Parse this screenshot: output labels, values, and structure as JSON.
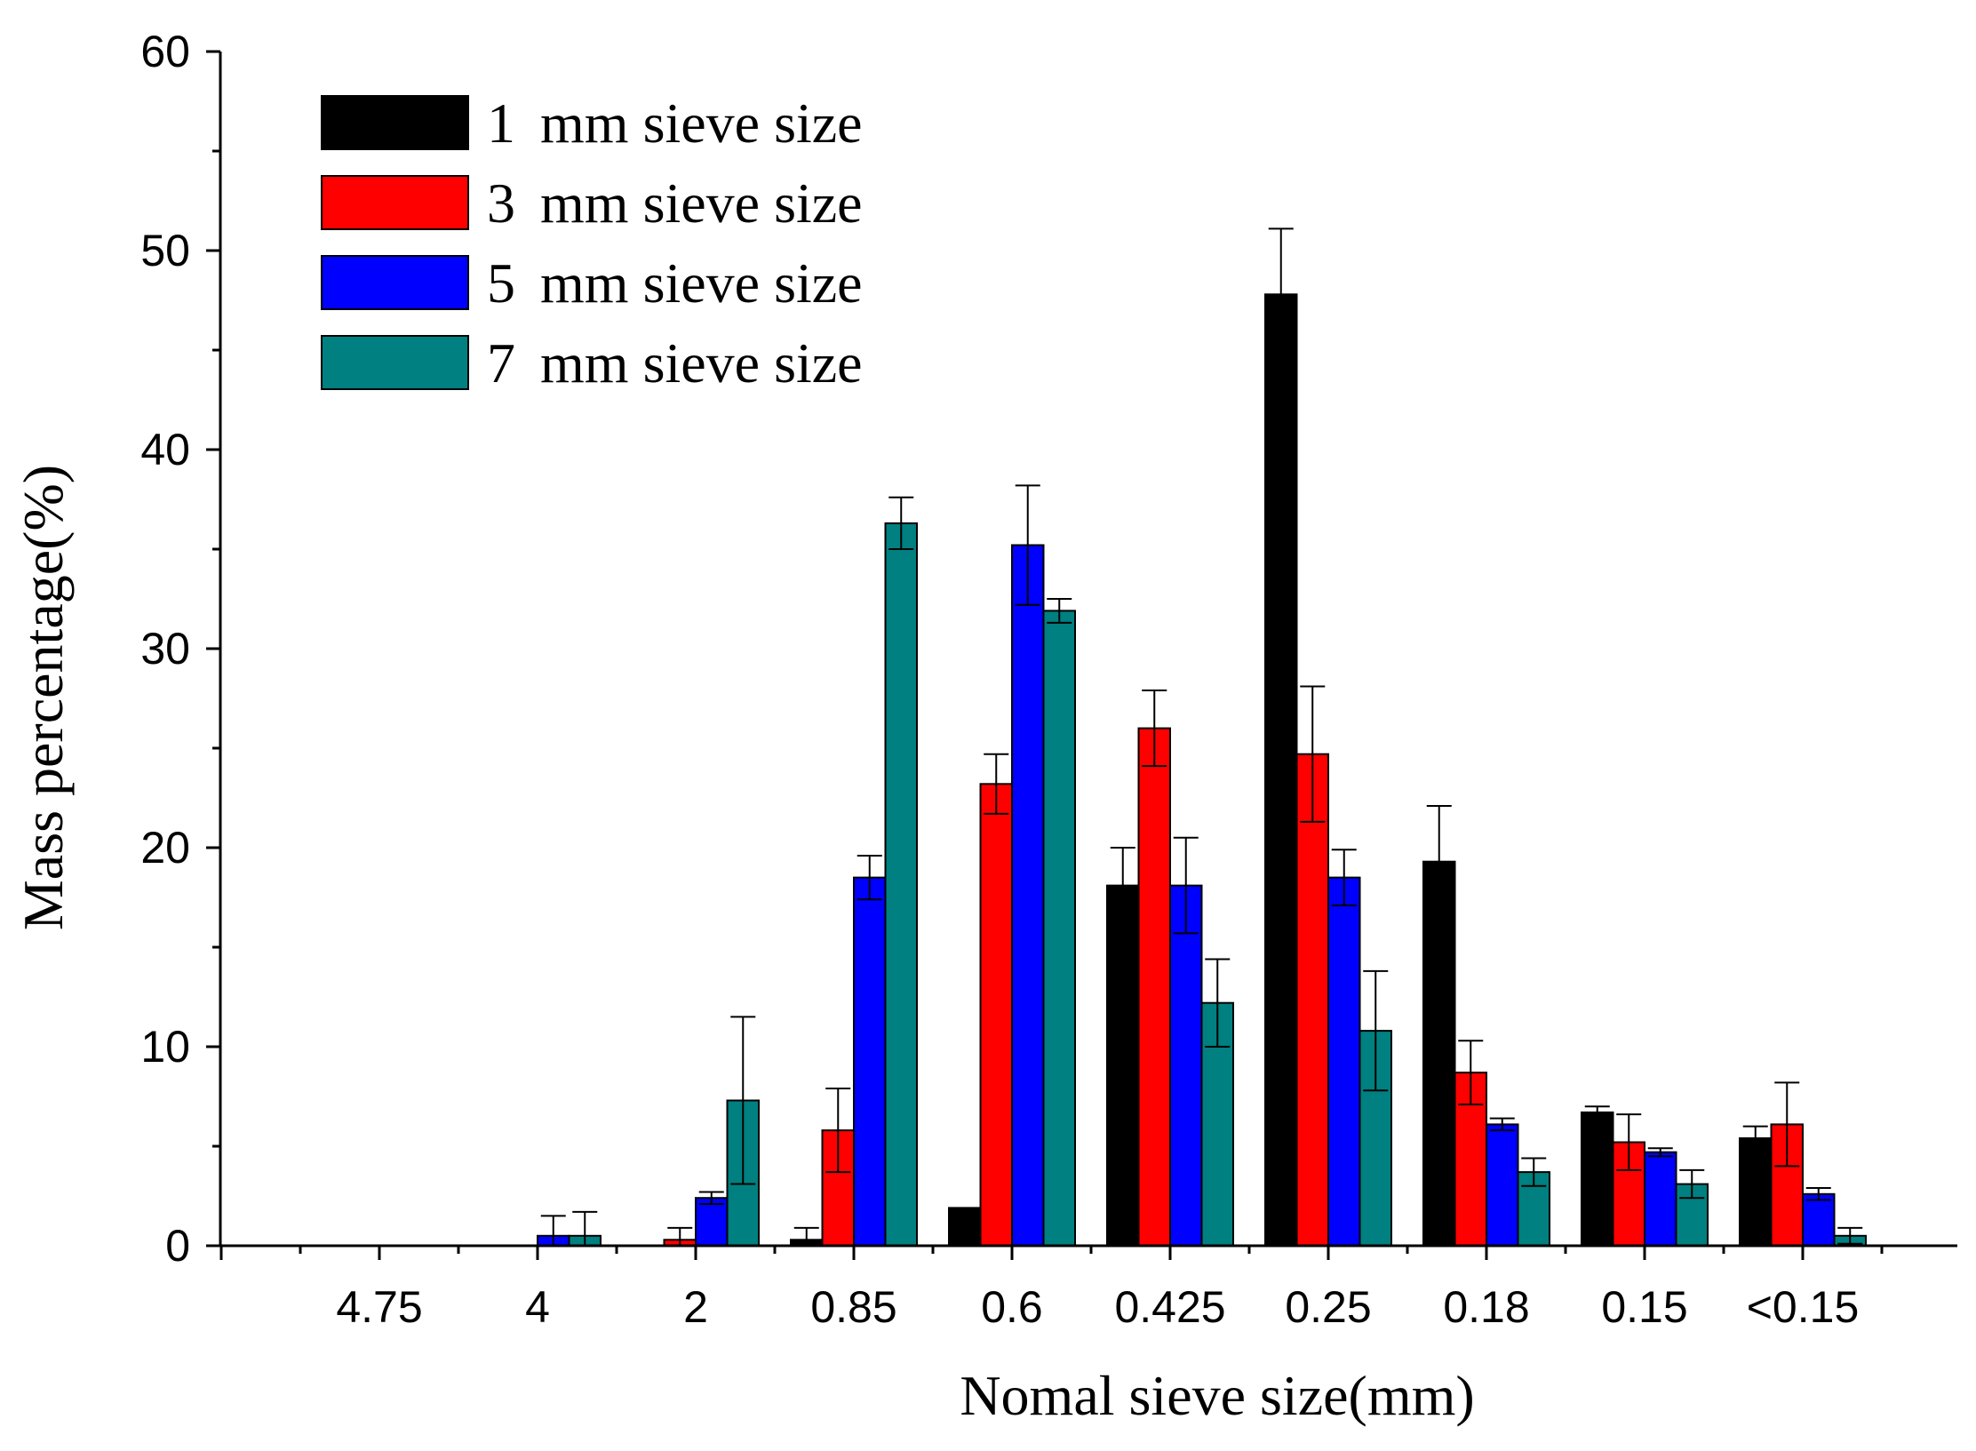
{
  "chart_data": {
    "type": "bar",
    "title": "",
    "xlabel": "Nomal sieve size(mm)",
    "ylabel": "Mass percentage(%)",
    "ylim": [
      0,
      60
    ],
    "yticks": [
      0,
      10,
      20,
      30,
      40,
      50,
      60
    ],
    "categories": [
      "4.75",
      "4",
      "2",
      "0.85",
      "0.6",
      "0.425",
      "0.25",
      "0.18",
      "0.15",
      "<0.15"
    ],
    "legend_position": "top-left",
    "series": [
      {
        "name": "1 mm sieve size",
        "legend_number": "1",
        "legend_text": "mm sieve size",
        "color": "#000000",
        "values": [
          0,
          0,
          0,
          0.3,
          1.9,
          18.1,
          47.8,
          19.3,
          6.7,
          5.4
        ],
        "errors": [
          0,
          0,
          0,
          0.6,
          0,
          1.9,
          3.3,
          2.8,
          0.3,
          0.6
        ]
      },
      {
        "name": "3 mm sieve size",
        "legend_number": "3",
        "legend_text": "mm sieve size",
        "color": "#ff0000",
        "values": [
          0,
          0,
          0.3,
          5.8,
          23.2,
          26.0,
          24.7,
          8.7,
          5.2,
          6.1
        ],
        "errors": [
          0,
          0,
          0.6,
          2.1,
          1.5,
          1.9,
          3.4,
          1.6,
          1.4,
          2.1
        ]
      },
      {
        "name": "5 mm sieve size",
        "legend_number": "5",
        "legend_text": "mm sieve size",
        "color": "#0000ff",
        "values": [
          0,
          0.5,
          2.4,
          18.5,
          35.2,
          18.1,
          18.5,
          6.1,
          4.7,
          2.6
        ],
        "errors": [
          0,
          1.0,
          0.3,
          1.1,
          3.0,
          2.4,
          1.4,
          0.3,
          0.2,
          0.3
        ]
      },
      {
        "name": "7 mm sieve size",
        "legend_number": "7",
        "legend_text": "mm sieve size",
        "color": "#008080",
        "values": [
          0,
          0.5,
          7.3,
          36.3,
          31.9,
          12.2,
          10.8,
          3.7,
          3.1,
          0.5
        ],
        "errors": [
          0,
          1.2,
          4.2,
          1.3,
          0.6,
          2.2,
          3.0,
          0.7,
          0.7,
          0.4
        ]
      }
    ]
  }
}
